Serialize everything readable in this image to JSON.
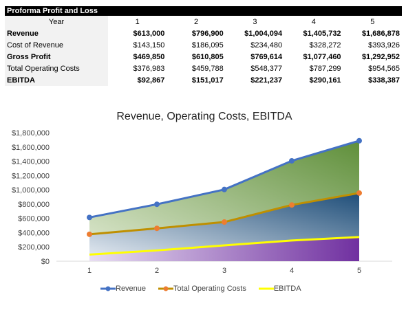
{
  "table": {
    "title": "Proforma Profit and Loss",
    "header_label": "Year",
    "years": [
      "1",
      "2",
      "3",
      "4",
      "5"
    ],
    "rows": [
      {
        "label": "Revenue",
        "bold": true,
        "values": [
          "$613,000",
          "$796,900",
          "$1,004,094",
          "$1,405,732",
          "$1,686,878"
        ]
      },
      {
        "label": "Cost of Revenue",
        "bold": false,
        "values": [
          "$143,150",
          "$186,095",
          "$234,480",
          "$328,272",
          "$393,926"
        ]
      },
      {
        "label": "Gross Profit",
        "bold": true,
        "values": [
          "$469,850",
          "$610,805",
          "$769,614",
          "$1,077,460",
          "$1,292,952"
        ]
      },
      {
        "label": "Total Operating Costs",
        "bold": false,
        "values": [
          "$376,983",
          "$459,788",
          "$548,377",
          "$787,299",
          "$954,565"
        ]
      },
      {
        "label": "EBITDA",
        "bold": true,
        "values": [
          "$92,867",
          "$151,017",
          "$221,237",
          "$290,161",
          "$338,387"
        ]
      }
    ]
  },
  "chart_data": {
    "type": "area",
    "title": "Revenue, Operating Costs, EBITDA",
    "x": [
      1,
      2,
      3,
      4,
      5
    ],
    "ylim": [
      0,
      1800000
    ],
    "yticks": [
      "$0",
      "$200,000",
      "$400,000",
      "$600,000",
      "$800,000",
      "$1,000,000",
      "$1,200,000",
      "$1,400,000",
      "$1,600,000",
      "$1,800,000"
    ],
    "xticks": [
      "1",
      "2",
      "3",
      "4",
      "5"
    ],
    "legend_position": "bottom",
    "grid": false,
    "series": [
      {
        "name": "Revenue",
        "values": [
          613000,
          796900,
          1004094,
          1405732,
          1686878
        ],
        "color": "#4472c4",
        "marker": true
      },
      {
        "name": "Total Operating Costs",
        "values": [
          376983,
          459788,
          548377,
          787299,
          954565
        ],
        "color": "#bf8f00",
        "marker": true
      },
      {
        "name": "EBITDA",
        "values": [
          92867,
          151017,
          221237,
          290161,
          338387
        ],
        "color": "#ffff00",
        "marker": false
      }
    ],
    "colors": {
      "revenue_fill_start": "#e3ecd6",
      "revenue_fill_end": "#5f8f3a",
      "opcost_fill_start": "#e9eef4",
      "opcost_fill_end": "#1f4e79",
      "ebitda_fill_start": "#e8def2",
      "ebitda_fill_end": "#7030a0",
      "marker_orange": "#ed7d31"
    }
  }
}
